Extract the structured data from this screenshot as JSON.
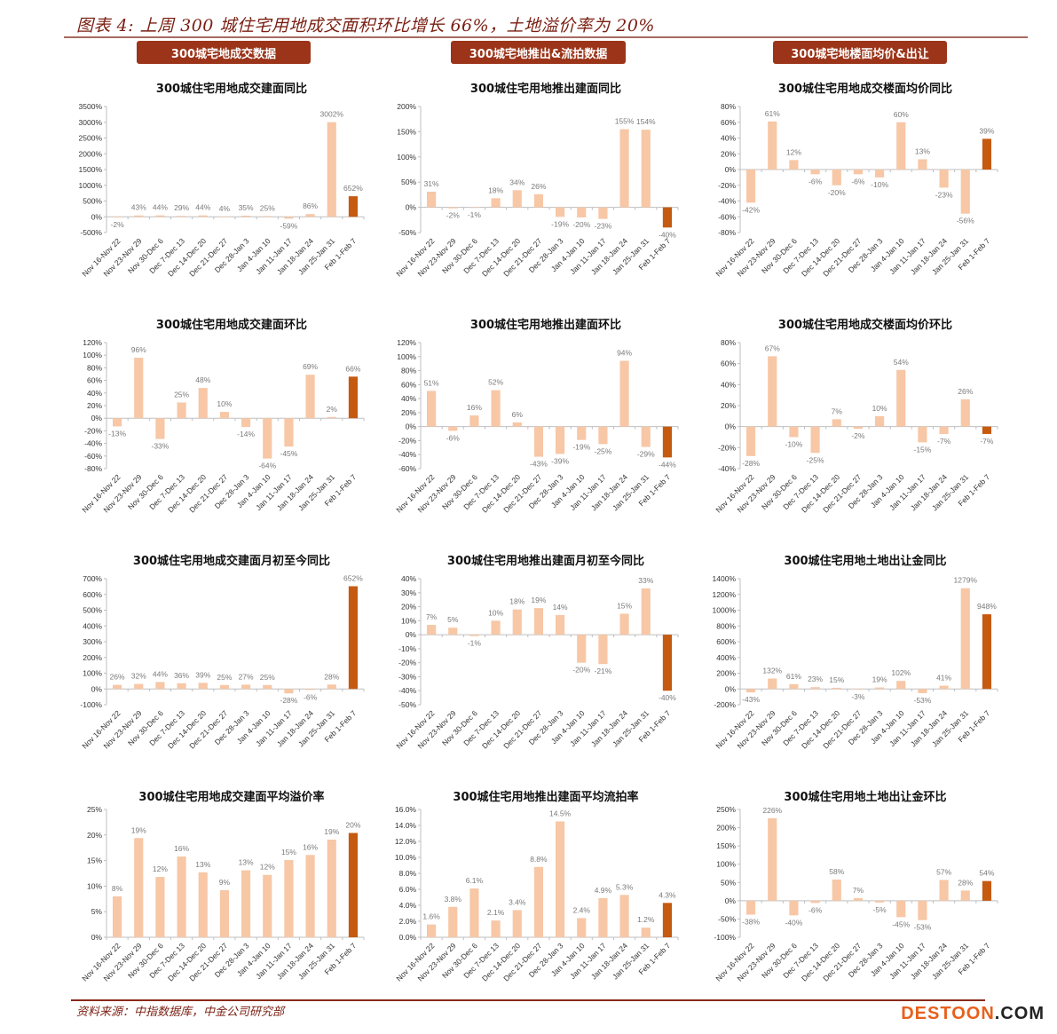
{
  "header": {
    "title": "图表 4:  上周 300 城住宅用地成交面积环比增长 66%，土地溢价率为 20%"
  },
  "sections": [
    {
      "label": "300城宅地成交数据"
    },
    {
      "label": "300城宅地推出&流拍数据"
    },
    {
      "label": "300城宅地楼面均价&出让"
    }
  ],
  "colors": {
    "bar": "#f7c7a6",
    "highlight": "#c55a11",
    "axis": "#bfbfbf",
    "title_text": "#7a1f12",
    "section_bg": "#9b3419"
  },
  "footer": {
    "source": "资料来源：中指数据库，中金公司研究部",
    "watermark_a": "DESTOON",
    "watermark_b": ".COM"
  },
  "chart_data": [
    {
      "type": "bar",
      "title": "300城住宅用地成交建面同比",
      "categories": [
        "Nov 16-Nov 22",
        "Nov 23-Nov 29",
        "Nov 30-Dec 6",
        "Dec 7-Dec 13",
        "Dec 14-Dec 20",
        "Dec 21-Dec 27",
        "Dec 28-Jan 3",
        "Jan 4-Jan 10",
        "Jan 11-Jan 17",
        "Jan 18-Jan 24",
        "Jan 25-Jan 31",
        "Feb 1-Feb 7"
      ],
      "values": [
        -2,
        43,
        44,
        29,
        44,
        4,
        35,
        25,
        -59,
        86,
        3002,
        652
      ],
      "labels": [
        "-2%",
        "43%",
        "44%",
        "29%",
        "44%",
        "4%",
        "35%",
        "25%",
        "-59%",
        "86%",
        "3002%",
        "652%"
      ],
      "ylim": [
        -500,
        3500
      ],
      "ystep": 500,
      "yticks": [
        "-500%",
        "0%",
        "500%",
        "1000%",
        "1500%",
        "2000%",
        "2500%",
        "3000%",
        "3500%"
      ],
      "highlight_index": 11
    },
    {
      "type": "bar",
      "title": "300城住宅用地推出建面同比",
      "categories": [
        "Nov 16-Nov 22",
        "Nov 23-Nov 29",
        "Nov 30-Dec 6",
        "Dec 7-Dec 13",
        "Dec 14-Dec 20",
        "Dec 21-Dec 27",
        "Dec 28-Jan 3",
        "Jan 4-Jan 10",
        "Jan 11-Jan 17",
        "Jan 18-Jan 24",
        "Jan 25-Jan 31",
        "Feb 1-Feb 7"
      ],
      "values": [
        31,
        -2,
        -1,
        18,
        34,
        26,
        -19,
        -20,
        -23,
        155,
        154,
        -40
      ],
      "labels": [
        "31%",
        "-2%",
        "-1%",
        "18%",
        "34%",
        "26%",
        "-19%",
        "-20%",
        "-23%",
        "155%",
        "154%",
        "-40%"
      ],
      "ylim": [
        -50,
        200
      ],
      "ystep": 50,
      "yticks": [
        "-50%",
        "0%",
        "50%",
        "100%",
        "150%",
        "200%"
      ],
      "highlight_index": 11
    },
    {
      "type": "bar",
      "title": "300城住宅用地成交楼面均价同比",
      "categories": [
        "Nov 16-Nov 22",
        "Nov 23-Nov 29",
        "Nov 30-Dec 6",
        "Dec 7-Dec 13",
        "Dec 14-Dec 20",
        "Dec 21-Dec 27",
        "Dec 28-Jan 3",
        "Jan 4-Jan 10",
        "Jan 11-Jan 17",
        "Jan 18-Jan 24",
        "Jan 25-Jan 31",
        "Feb 1-Feb 7"
      ],
      "values": [
        -42,
        61,
        12,
        -6,
        -20,
        -6,
        -10,
        60,
        13,
        -23,
        -56,
        39
      ],
      "labels": [
        "-42%",
        "61%",
        "12%",
        "-6%",
        "-20%",
        "-6%",
        "-10%",
        "60%",
        "13%",
        "-23%",
        "-56%",
        "39%"
      ],
      "ylim": [
        -80,
        80
      ],
      "ystep": 20,
      "yticks": [
        "-80%",
        "-60%",
        "-40%",
        "-20%",
        "0%",
        "20%",
        "40%",
        "60%",
        "80%"
      ],
      "highlight_index": 11
    },
    {
      "type": "bar",
      "title": "300城住宅用地成交建面环比",
      "categories": [
        "Nov 16-Nov 22",
        "Nov 23-Nov 29",
        "Nov 30-Dec 6",
        "Dec 7-Dec 13",
        "Dec 14-Dec 20",
        "Dec 21-Dec 27",
        "Dec 28-Jan 3",
        "Jan 4-Jan 10",
        "Jan 11-Jan 17",
        "Jan 18-Jan 24",
        "Jan 25-Jan 31",
        "Feb 1-Feb 7"
      ],
      "values": [
        -13,
        96,
        -33,
        25,
        48,
        10,
        -14,
        -64,
        -45,
        69,
        2,
        66
      ],
      "labels": [
        "-13%",
        "96%",
        "-33%",
        "25%",
        "48%",
        "10%",
        "-14%",
        "-64%",
        "-45%",
        "69%",
        "2%",
        "66%"
      ],
      "ylim": [
        -80,
        120
      ],
      "ystep": 20,
      "yticks": [
        "-80%",
        "-60%",
        "-40%",
        "-20%",
        "0%",
        "20%",
        "40%",
        "60%",
        "80%",
        "100%",
        "120%"
      ],
      "highlight_index": 11
    },
    {
      "type": "bar",
      "title": "300城住宅用地推出建面环比",
      "categories": [
        "Nov 16-Nov 22",
        "Nov 23-Nov 29",
        "Nov 30-Dec 6",
        "Dec 7-Dec 13",
        "Dec 14-Dec 20",
        "Dec 21-Dec 27",
        "Dec 28-Jan 3",
        "Jan 4-Jan 10",
        "Jan 11-Jan 17",
        "Jan 18-Jan 24",
        "Jan 25-Jan 31",
        "Feb 1-Feb 7"
      ],
      "values": [
        51,
        -6,
        16,
        52,
        6,
        -43,
        -39,
        -19,
        -25,
        94,
        -29,
        -44
      ],
      "labels": [
        "51%",
        "-6%",
        "16%",
        "52%",
        "6%",
        "-43%",
        "-39%",
        "-19%",
        "-25%",
        "94%",
        "-29%",
        "-44%"
      ],
      "ylim": [
        -60,
        120
      ],
      "ystep": 20,
      "yticks": [
        "-60%",
        "-40%",
        "-20%",
        "0%",
        "20%",
        "40%",
        "60%",
        "80%",
        "100%",
        "120%"
      ],
      "highlight_index": 11
    },
    {
      "type": "bar",
      "title": "300城住宅用地成交楼面均价环比",
      "categories": [
        "Nov 16-Nov 22",
        "Nov 23-Nov 29",
        "Nov 30-Dec 6",
        "Dec 7-Dec 13",
        "Dec 14-Dec 20",
        "Dec 21-Dec 27",
        "Dec 28-Jan 3",
        "Jan 4-Jan 10",
        "Jan 11-Jan 17",
        "Jan 18-Jan 24",
        "Jan 25-Jan 31",
        "Feb 1-Feb 7"
      ],
      "values": [
        -28,
        67,
        -10,
        -25,
        7,
        -2,
        10,
        54,
        -15,
        -7,
        26,
        -7
      ],
      "labels": [
        "-28%",
        "67%",
        "-10%",
        "-25%",
        "7%",
        "-2%",
        "10%",
        "54%",
        "-15%",
        "-7%",
        "26%",
        "-7%"
      ],
      "ylim": [
        -40,
        80
      ],
      "ystep": 20,
      "yticks": [
        "-40%",
        "-20%",
        "0%",
        "20%",
        "40%",
        "60%",
        "80%"
      ],
      "highlight_index": 11
    },
    {
      "type": "bar",
      "title": "300城住宅用地成交建面月初至今同比",
      "categories": [
        "Nov 16-Nov 22",
        "Nov 23-Nov 29",
        "Nov 30-Dec 6",
        "Dec 7-Dec 13",
        "Dec 14-Dec 20",
        "Dec 21-Dec 27",
        "Dec 28-Jan 3",
        "Jan 4-Jan 10",
        "Jan 11-Jan 17",
        "Jan 18-Jan 24",
        "Jan 25-Jan 31",
        "Feb 1-Feb 7"
      ],
      "values": [
        26,
        32,
        44,
        36,
        39,
        25,
        27,
        25,
        -28,
        -6,
        28,
        652
      ],
      "labels": [
        "26%",
        "32%",
        "44%",
        "36%",
        "39%",
        "25%",
        "27%",
        "25%",
        "-28%",
        "-6%",
        "28%",
        "652%"
      ],
      "ylim": [
        -100,
        700
      ],
      "ystep": 100,
      "yticks": [
        "-100%",
        "0%",
        "100%",
        "200%",
        "300%",
        "400%",
        "500%",
        "600%",
        "700%"
      ],
      "highlight_index": 11
    },
    {
      "type": "bar",
      "title": "300城住宅用地推出建面月初至今同比",
      "categories": [
        "Nov 16-Nov 22",
        "Nov 23-Nov 29",
        "Nov 30-Dec 6",
        "Dec 7-Dec 13",
        "Dec 14-Dec 20",
        "Dec 21-Dec 27",
        "Dec 28-Jan 3",
        "Jan 4-Jan 10",
        "Jan 11-Jan 17",
        "Jan 18-Jan 24",
        "Jan 25-Jan 31",
        "Feb 1-Feb 7"
      ],
      "values": [
        7,
        5,
        -1,
        10,
        18,
        19,
        14,
        -20,
        -21,
        15,
        33,
        -40
      ],
      "labels": [
        "7%",
        "5%",
        "-1%",
        "10%",
        "18%",
        "19%",
        "14%",
        "-20%",
        "-21%",
        "15%",
        "33%",
        "-40%"
      ],
      "ylim": [
        -50,
        40
      ],
      "ystep": 10,
      "yticks": [
        "-50%",
        "-40%",
        "-30%",
        "-20%",
        "-10%",
        "0%",
        "10%",
        "20%",
        "30%",
        "40%"
      ],
      "highlight_index": 11
    },
    {
      "type": "bar",
      "title": "300城住宅用地土地出让金同比",
      "categories": [
        "Nov 16-Nov 22",
        "Nov 23-Nov 29",
        "Nov 30-Dec 6",
        "Dec 7-Dec 13",
        "Dec 14-Dec 20",
        "Dec 21-Dec 27",
        "Dec 28-Jan 3",
        "Jan 4-Jan 10",
        "Jan 11-Jan 17",
        "Jan 18-Jan 24",
        "Jan 25-Jan 31",
        "Feb 1-Feb 7"
      ],
      "values": [
        -43,
        132,
        61,
        23,
        15,
        -3,
        19,
        102,
        -53,
        41,
        1279,
        948
      ],
      "labels": [
        "-43%",
        "132%",
        "61%",
        "23%",
        "15%",
        "-3%",
        "19%",
        "102%",
        "-53%",
        "41%",
        "1279%",
        "948%"
      ],
      "ylim": [
        -200,
        1400
      ],
      "ystep": 200,
      "yticks": [
        "-200%",
        "0%",
        "200%",
        "400%",
        "600%",
        "800%",
        "1000%",
        "1200%",
        "1400%"
      ],
      "highlight_index": 11
    },
    {
      "type": "bar",
      "title": "300城住宅用地成交建面平均溢价率",
      "categories": [
        "Nov 16-Nov 22",
        "Nov 23-Nov 29",
        "Nov 30-Dec 6",
        "Dec 7-Dec 13",
        "Dec 14-Dec 20",
        "Dec 21-Dec 27",
        "Dec 28-Jan 3",
        "Jan 4-Jan 10",
        "Jan 11-Jan 17",
        "Jan 18-Jan 24",
        "Jan 25-Jan 31",
        "Feb 1-Feb 7"
      ],
      "values": [
        8,
        19.4,
        11.8,
        15.8,
        12.7,
        9.2,
        13.1,
        12.2,
        15.1,
        16.1,
        19.1,
        20.4
      ],
      "labels": [
        "8%",
        "19%",
        "12%",
        "16%",
        "13%",
        "9%",
        "13%",
        "12%",
        "15%",
        "16%",
        "19%",
        "20%"
      ],
      "ylim": [
        0,
        25
      ],
      "ystep": 5,
      "yticks": [
        "0%",
        "5%",
        "10%",
        "15%",
        "20%",
        "25%"
      ],
      "highlight_index": 11
    },
    {
      "type": "bar",
      "title": "300城住宅用地推出建面平均流拍率",
      "categories": [
        "Nov 16-Nov 22",
        "Nov 23-Nov 29",
        "Nov 30-Dec 6",
        "Dec 7-Dec 13",
        "Dec 14-Dec 20",
        "Dec 21-Dec 27",
        "Dec 28-Jan 3",
        "Jan 4-Jan 10",
        "Jan 11-Jan 17",
        "Jan 18-Jan 24",
        "Jan 25-Jan 31",
        "Feb 1-Feb 7"
      ],
      "values": [
        1.6,
        3.8,
        6.1,
        2.1,
        3.4,
        8.8,
        14.5,
        2.4,
        4.9,
        5.3,
        1.2,
        4.3
      ],
      "labels": [
        "1.6%",
        "3.8%",
        "6.1%",
        "2.1%",
        "3.4%",
        "8.8%",
        "14.5%",
        "2.4%",
        "4.9%",
        "5.3%",
        "1.2%",
        "4.3%"
      ],
      "ylim": [
        0,
        16
      ],
      "ystep": 2,
      "yticks": [
        "0.0%",
        "2.0%",
        "4.0%",
        "6.0%",
        "8.0%",
        "10.0%",
        "12.0%",
        "14.0%",
        "16.0%"
      ],
      "highlight_index": 11
    },
    {
      "type": "bar",
      "title": "300城住宅用地土地出让金环比",
      "categories": [
        "Nov 16-Nov 22",
        "Nov 23-Nov 29",
        "Nov 30-Dec 6",
        "Dec 7-Dec 13",
        "Dec 14-Dec 20",
        "Dec 21-Dec 27",
        "Dec 28-Jan 3",
        "Jan 4-Jan 10",
        "Jan 11-Jan 17",
        "Jan 18-Jan 24",
        "Jan 25-Jan 31",
        "Feb 1-Feb 7"
      ],
      "values": [
        -38,
        226,
        -40,
        -6,
        58,
        7,
        -5,
        -45,
        -53,
        57,
        28,
        54
      ],
      "labels": [
        "-38%",
        "226%",
        "-40%",
        "-6%",
        "58%",
        "7%",
        "-5%",
        "-45%",
        "-53%",
        "57%",
        "28%",
        "54%"
      ],
      "ylim": [
        -100,
        250
      ],
      "ystep": 50,
      "yticks": [
        "-100%",
        "-50%",
        "0%",
        "50%",
        "100%",
        "150%",
        "200%",
        "250%"
      ],
      "highlight_index": 11
    }
  ]
}
